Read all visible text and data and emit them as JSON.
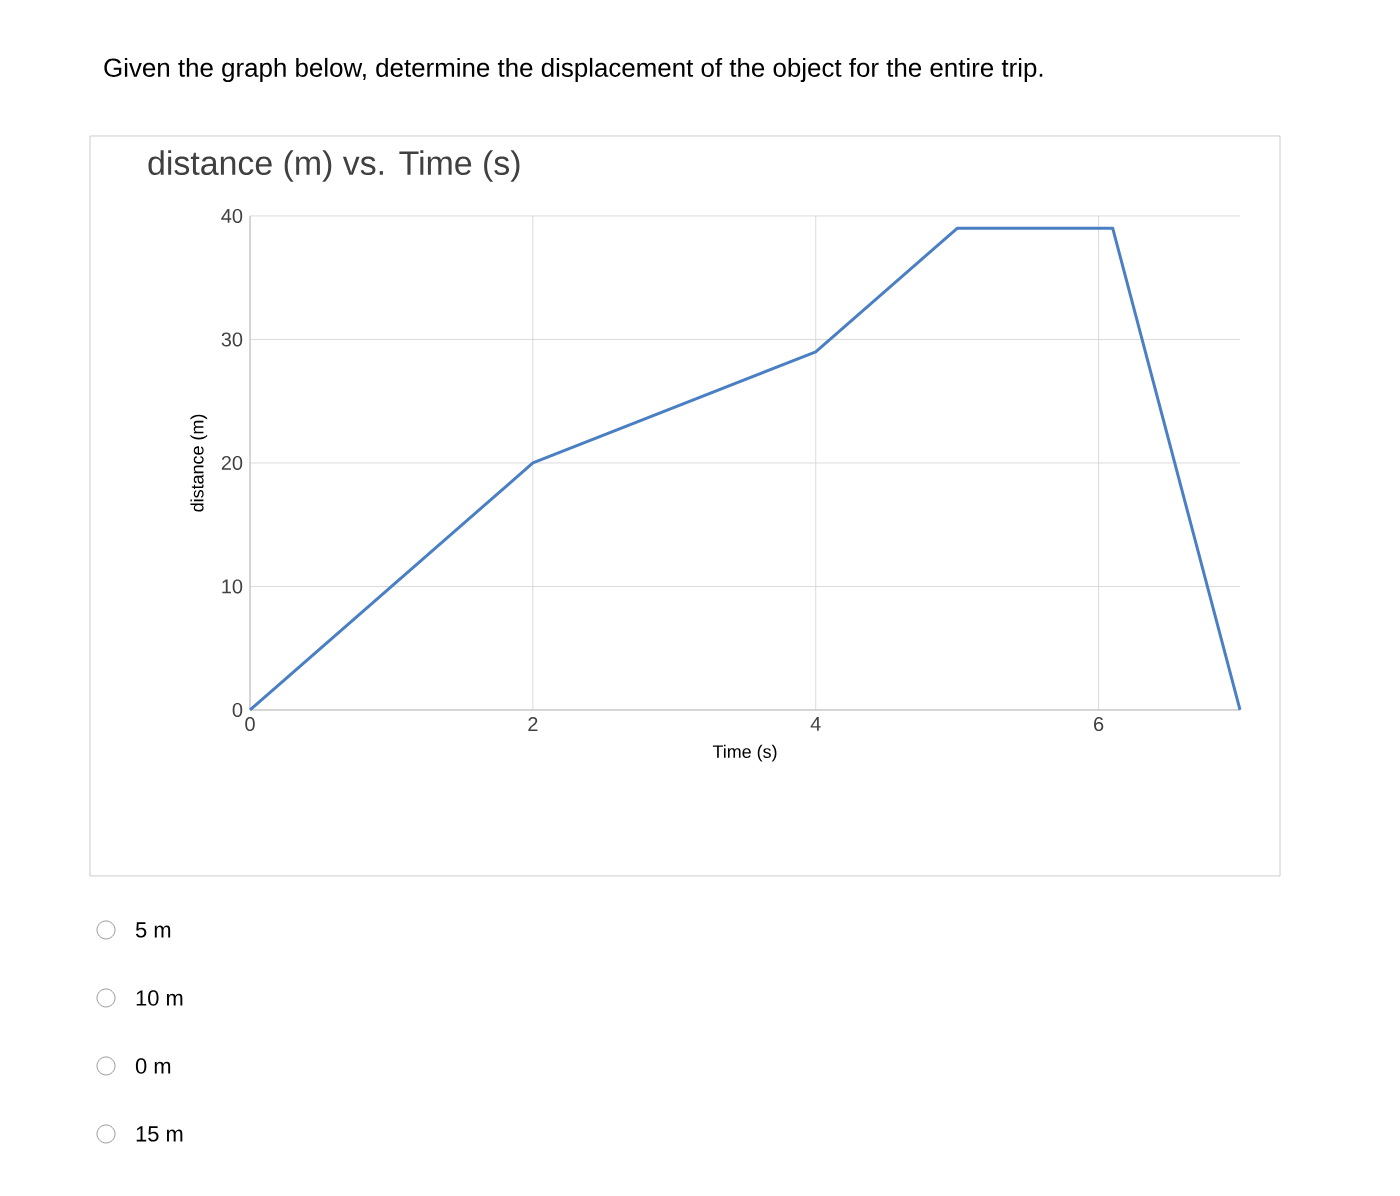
{
  "chart_data": {
    "type": "line",
    "title": "distance (m) vs. Time (s)",
    "xlabel": "Time (s)",
    "ylabel": "distance (m)",
    "annotations": [
      "Given the graph below, determine the displacement of the object for the entire trip.",
      "5 m",
      "10 m",
      "0 m",
      "15 m"
    ],
    "x": [
      0,
      2,
      4,
      5,
      6.1,
      7
    ],
    "series": [
      {
        "color": "#4a7fc4",
        "values": [
          0,
          20,
          29,
          39,
          39,
          0
        ]
      }
    ],
    "xlim": [
      0,
      7
    ],
    "ylim": [
      0,
      40
    ],
    "xticks": [
      0,
      2,
      4,
      6
    ],
    "yticks": [
      0,
      10,
      20,
      30,
      40
    ],
    "grid": true,
    "marker": "none",
    "line_style": "solid"
  }
}
